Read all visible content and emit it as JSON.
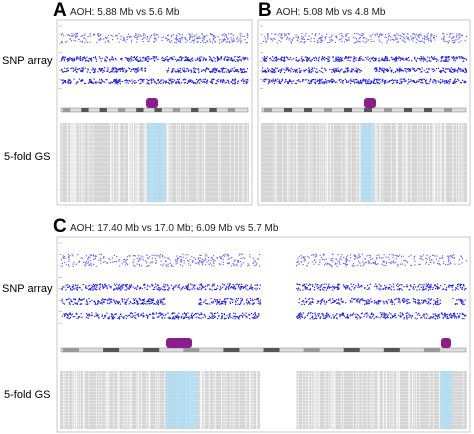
{
  "panels": [
    {
      "label": "A",
      "title": "AOH: 5.88 Mb vs 5.6 Mb",
      "row_labels": [
        "SNP array",
        "5-fold GS"
      ]
    },
    {
      "label": "B",
      "title": "AOH: 5.08 Mb vs 4.8 Mb"
    },
    {
      "label": "C",
      "title": "AOH: 17.40 Mb vs 17.0 Mb; 6.09 Mb vs 5.7 Mb",
      "row_labels": [
        "SNP array",
        "5-fold GS"
      ]
    }
  ]
}
